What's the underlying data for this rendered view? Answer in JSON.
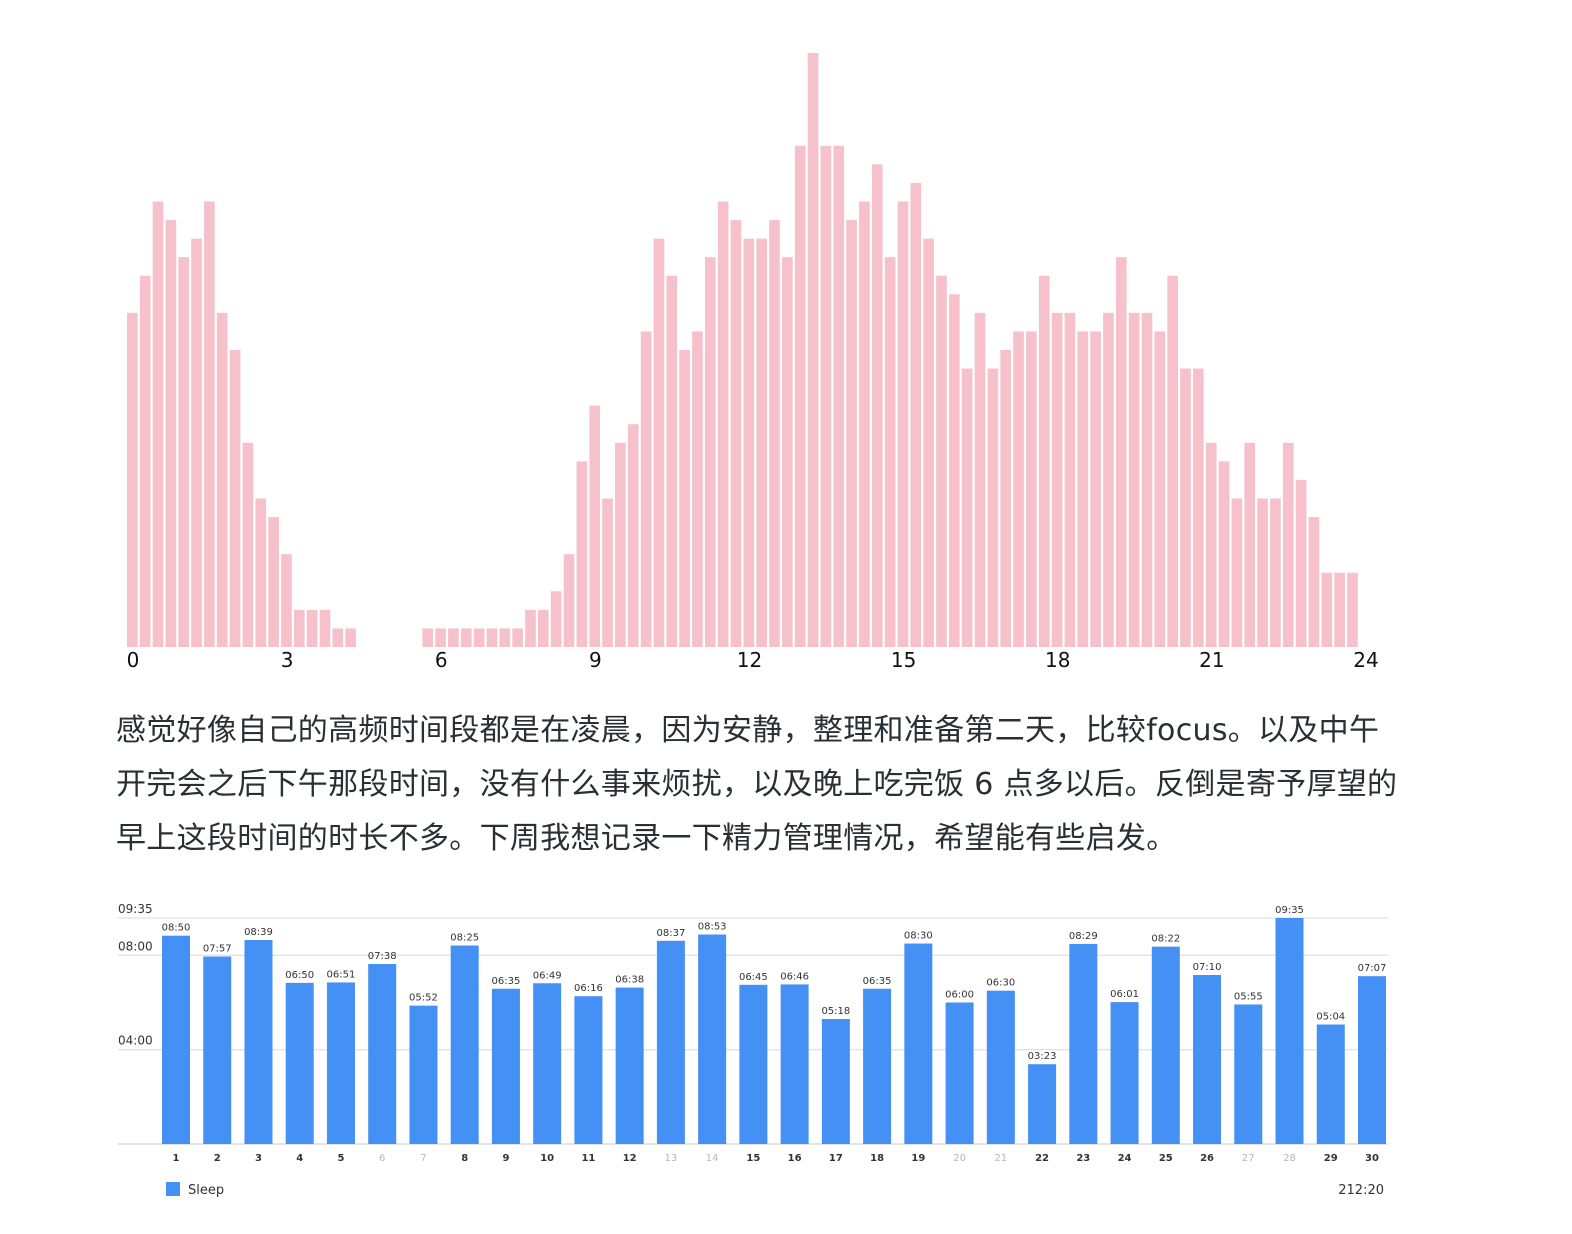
{
  "article": {
    "paragraph": "感觉好像自己的高频时间段都是在凌晨，因为安静，整理和准备第二天，比较focus。以及中午开完会之后下午那段时间，没有什么事来烦扰，以及晚上吃完饭 6 点多以后。反倒是寄予厚望的早上这段时间的时长不多。下周我想记录一下精力管理情况，希望能有些启发。"
  },
  "colors": {
    "focus_bar": "#f6c1cb",
    "sleep_bar": "#4590f5",
    "weekend_label": "#b8b8b8",
    "label": "#333333",
    "grid": "#d8d8d8"
  },
  "chart_data": [
    {
      "type": "bar",
      "title": "",
      "xlabel": "",
      "ylabel": "",
      "bin_minutes": 15,
      "x_ticks": [
        "0",
        "3",
        "6",
        "9",
        "12",
        "15",
        "18",
        "21",
        "24"
      ],
      "xlim": [
        0,
        24
      ],
      "ylim": [
        0,
        32
      ],
      "grid": false,
      "values": [
        18,
        20,
        24,
        23,
        21,
        22,
        24,
        18,
        16,
        11,
        8,
        7,
        5,
        2,
        2,
        2,
        1,
        1,
        0,
        0,
        0,
        0,
        0,
        1,
        1,
        1,
        1,
        1,
        1,
        1,
        1,
        2,
        2,
        3,
        5,
        10,
        13,
        8,
        11,
        12,
        17,
        22,
        20,
        16,
        17,
        21,
        24,
        23,
        22,
        22,
        23,
        21,
        27,
        32,
        27,
        27,
        23,
        24,
        26,
        21,
        24,
        25,
        22,
        20,
        19,
        15,
        18,
        15,
        16,
        17,
        17,
        20,
        18,
        18,
        17,
        17,
        18,
        21,
        18,
        18,
        17,
        20,
        15,
        15,
        11,
        10,
        8,
        11,
        8,
        8,
        11,
        9,
        7,
        4,
        4,
        4
      ]
    },
    {
      "type": "bar",
      "title": "",
      "xlabel": "",
      "ylabel": "",
      "categories": [
        "1",
        "2",
        "3",
        "4",
        "5",
        "6",
        "7",
        "8",
        "9",
        "10",
        "11",
        "12",
        "13",
        "14",
        "15",
        "16",
        "17",
        "18",
        "19",
        "20",
        "21",
        "22",
        "23",
        "24",
        "25",
        "26",
        "27",
        "28",
        "29",
        "30"
      ],
      "weekend_days": [
        "6",
        "7",
        "13",
        "14",
        "20",
        "21",
        "27",
        "28"
      ],
      "series": [
        {
          "name": "Sleep",
          "values_minutes": [
            530,
            477,
            519,
            410,
            411,
            458,
            352,
            505,
            395,
            409,
            376,
            398,
            517,
            533,
            405,
            406,
            318,
            395,
            510,
            360,
            390,
            203,
            509,
            361,
            502,
            430,
            355,
            575,
            304,
            427
          ],
          "labels": [
            "08:50",
            "07:57",
            "08:39",
            "06:50",
            "06:51",
            "07:38",
            "05:52",
            "08:25",
            "06:35",
            "06:49",
            "06:16",
            "06:38",
            "08:37",
            "08:53",
            "06:45",
            "06:46",
            "05:18",
            "06:35",
            "08:30",
            "06:00",
            "06:30",
            "03:23",
            "08:29",
            "06:01",
            "08:22",
            "07:10",
            "05:55",
            "09:35",
            "05:04",
            "07:07"
          ]
        }
      ],
      "y_ticks": [
        "09:35",
        "08:00",
        "04:00"
      ],
      "y_tick_minutes": [
        575,
        480,
        240
      ],
      "ylim_minutes": [
        0,
        575
      ],
      "grid": true,
      "legend": "bottom-left",
      "total": "212:20"
    }
  ]
}
